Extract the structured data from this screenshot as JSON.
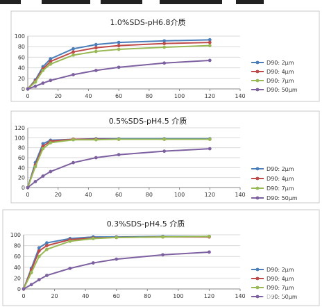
{
  "chart_data": [
    {
      "type": "line",
      "title": "1.0%SDS-pH6.8介质",
      "x": [
        0,
        5,
        10,
        15,
        30,
        45,
        60,
        90,
        120
      ],
      "xlim": [
        0,
        140
      ],
      "xticks": [
        0,
        20,
        40,
        60,
        80,
        100,
        120,
        140
      ],
      "ylim": [
        0,
        100
      ],
      "yticks": [
        0,
        20,
        40,
        60,
        80,
        100
      ],
      "grid": "horizontal",
      "legend": "right",
      "series": [
        {
          "name": "D90: 2μm",
          "color": "#4a7ebb",
          "values": [
            0,
            17,
            42,
            57,
            76,
            84,
            88,
            91,
            93
          ]
        },
        {
          "name": "D90: 4μm",
          "color": "#be4b48",
          "values": [
            0,
            15,
            38,
            52,
            70,
            78,
            82,
            86,
            88
          ]
        },
        {
          "name": "D90: 7μm",
          "color": "#98b954",
          "values": [
            0,
            13,
            35,
            47,
            64,
            71,
            75,
            79,
            82
          ]
        },
        {
          "name": "D90: 50μm",
          "color": "#7d60a0",
          "values": [
            0,
            5,
            11,
            16,
            27,
            35,
            41,
            49,
            54
          ]
        }
      ]
    },
    {
      "type": "line",
      "title": "0.5%SDS-pH4.5 介质",
      "x": [
        0,
        5,
        10,
        15,
        30,
        45,
        60,
        90,
        120
      ],
      "xlim": [
        0,
        140
      ],
      "xticks": [
        0,
        20,
        40,
        60,
        80,
        100,
        120,
        140
      ],
      "ylim": [
        0,
        120
      ],
      "yticks": [
        0,
        20,
        40,
        60,
        80,
        100,
        120
      ],
      "grid": "horizontal",
      "legend": "right",
      "series": [
        {
          "name": "D90: 2μm",
          "color": "#4a7ebb",
          "values": [
            0,
            50,
            88,
            95,
            97,
            98,
            98,
            98,
            98
          ]
        },
        {
          "name": "D90: 4μm",
          "color": "#be4b48",
          "values": [
            0,
            45,
            83,
            93,
            97,
            97,
            97,
            97,
            97
          ]
        },
        {
          "name": "D90: 7μm",
          "color": "#98b954",
          "values": [
            0,
            42,
            78,
            90,
            96,
            96,
            97,
            97,
            97
          ]
        },
        {
          "name": "D90: 50μm",
          "color": "#7d60a0",
          "values": [
            0,
            12,
            23,
            32,
            50,
            60,
            66,
            73,
            78
          ]
        }
      ]
    },
    {
      "type": "line",
      "title": "0.3%SDS-pH4.5 介质",
      "x": [
        0,
        5,
        10,
        15,
        30,
        45,
        60,
        90,
        120
      ],
      "xlim": [
        0,
        140
      ],
      "xticks": [
        0,
        20,
        40,
        60,
        80,
        100,
        120,
        140
      ],
      "ylim": [
        0,
        100
      ],
      "yticks": [
        0,
        20,
        40,
        60,
        80,
        100
      ],
      "grid": "horizontal",
      "legend": "right",
      "series": [
        {
          "name": "D90: 2μm",
          "color": "#4a7ebb",
          "values": [
            0,
            38,
            76,
            85,
            93,
            96,
            96,
            97,
            97
          ]
        },
        {
          "name": "D90: 4μm",
          "color": "#be4b48",
          "values": [
            0,
            35,
            70,
            80,
            91,
            94,
            95,
            96,
            96
          ]
        },
        {
          "name": "D90: 7μm",
          "color": "#98b954",
          "values": [
            0,
            30,
            60,
            73,
            88,
            93,
            95,
            96,
            97
          ]
        },
        {
          "name": "D90: 50μm",
          "color": "#7d60a0",
          "values": [
            0,
            8,
            17,
            25,
            38,
            48,
            55,
            63,
            68
          ]
        }
      ]
    }
  ],
  "watermark": {
    "text": "知乎 @"
  }
}
